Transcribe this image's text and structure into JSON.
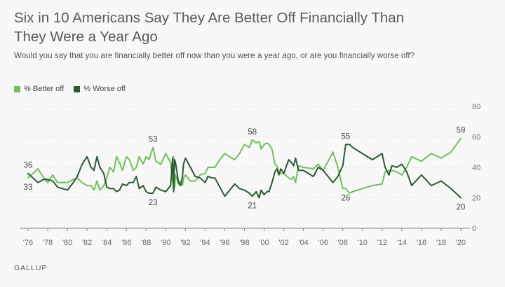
{
  "title": "Six in 10 Americans Say They Are Better Off Financially Than They Were a Year Ago",
  "subtitle": "Would you say that you are financially better off now than you were a year ago, or are you financially worse off?",
  "source": "GALLUP",
  "colors": {
    "better": "#72bf5f",
    "worse": "#2c5a33",
    "grid": "#dcdcdc",
    "axis": "#888888",
    "text": "#555555"
  },
  "chart_data": {
    "type": "line",
    "title": "Six in 10 Americans Say They Are Better Off Financially Than They Were a Year Ago",
    "xlabel": "",
    "ylabel": "",
    "xlim": [
      1976,
      2020
    ],
    "ylim": [
      0,
      80
    ],
    "y_ticks": [
      0,
      20,
      40,
      60,
      80
    ],
    "x_ticks": [
      1976,
      1978,
      1980,
      1982,
      1984,
      1986,
      1988,
      1990,
      1992,
      1994,
      1996,
      1998,
      2000,
      2002,
      2004,
      2006,
      2008,
      2010,
      2012,
      2014,
      2016,
      2018,
      2020
    ],
    "x_tick_labels": [
      "'76",
      "'78",
      "'80",
      "'82",
      "'84",
      "'86",
      "'88",
      "'90",
      "'92",
      "'94",
      "'96",
      "'98",
      "'00",
      "'02",
      "'04",
      "'06",
      "'08",
      "'10",
      "'12",
      "'14",
      "'16",
      "'18",
      "'20"
    ],
    "grid": true,
    "legend_position": "top-left",
    "series": [
      {
        "name": "% Better off",
        "color": "#72bf5f",
        "points": [
          [
            1976.0,
            33
          ],
          [
            1976.5,
            36
          ],
          [
            1977.0,
            39
          ],
          [
            1977.6,
            33
          ],
          [
            1978.0,
            30
          ],
          [
            1978.5,
            35
          ],
          [
            1979.0,
            30
          ],
          [
            1980.0,
            30
          ],
          [
            1980.6,
            32
          ],
          [
            1981.0,
            33
          ],
          [
            1981.5,
            30
          ],
          [
            1982.0,
            28
          ],
          [
            1982.4,
            28
          ],
          [
            1982.7,
            25
          ],
          [
            1983.0,
            31
          ],
          [
            1983.3,
            25
          ],
          [
            1983.7,
            28
          ],
          [
            1984.0,
            33
          ],
          [
            1984.3,
            40
          ],
          [
            1984.7,
            37
          ],
          [
            1985.0,
            47
          ],
          [
            1985.3,
            43
          ],
          [
            1985.6,
            38
          ],
          [
            1986.0,
            47
          ],
          [
            1986.3,
            45
          ],
          [
            1986.7,
            38
          ],
          [
            1987.0,
            40
          ],
          [
            1987.3,
            47
          ],
          [
            1987.7,
            42
          ],
          [
            1988.0,
            47
          ],
          [
            1988.3,
            45
          ],
          [
            1988.7,
            53
          ],
          [
            1989.0,
            44
          ],
          [
            1989.5,
            42
          ],
          [
            1990.0,
            49
          ],
          [
            1990.5,
            43
          ],
          [
            1990.7,
            30
          ],
          [
            1990.8,
            47
          ],
          [
            1990.9,
            26
          ],
          [
            1991.0,
            35
          ],
          [
            1991.3,
            29
          ],
          [
            1991.5,
            31
          ],
          [
            1991.7,
            28
          ],
          [
            1991.8,
            33
          ],
          [
            1992.0,
            35
          ],
          [
            1992.5,
            31
          ],
          [
            1993.0,
            31
          ],
          [
            1993.5,
            35
          ],
          [
            1994.0,
            36
          ],
          [
            1994.3,
            40
          ],
          [
            1994.7,
            40
          ],
          [
            1995.0,
            40
          ],
          [
            1995.5,
            45
          ],
          [
            1996.0,
            49
          ],
          [
            1997.0,
            45
          ],
          [
            1997.5,
            49
          ],
          [
            1998.0,
            55
          ],
          [
            1998.5,
            53
          ],
          [
            1998.8,
            58
          ],
          [
            1999.2,
            56
          ],
          [
            1999.5,
            57
          ],
          [
            1999.7,
            52
          ],
          [
            2000.0,
            55
          ],
          [
            2000.3,
            56
          ],
          [
            2000.5,
            55
          ],
          [
            2000.8,
            52
          ],
          [
            2001.1,
            42
          ],
          [
            2001.3,
            41
          ],
          [
            2001.5,
            37
          ],
          [
            2001.7,
            36
          ],
          [
            2002.0,
            36
          ],
          [
            2002.5,
            33
          ],
          [
            2002.8,
            32
          ],
          [
            2003.0,
            34
          ],
          [
            2003.2,
            30
          ],
          [
            2003.5,
            41
          ],
          [
            2004.0,
            40
          ],
          [
            2005.0,
            39
          ],
          [
            2005.5,
            42
          ],
          [
            2006.0,
            38
          ],
          [
            2007.0,
            50
          ],
          [
            2007.5,
            40
          ],
          [
            2008.0,
            26
          ],
          [
            2008.3,
            26
          ],
          [
            2008.7,
            23
          ],
          [
            2009.0,
            24
          ],
          [
            2010.0,
            26
          ],
          [
            2011.0,
            28
          ],
          [
            2012.0,
            29
          ],
          [
            2012.3,
            37
          ],
          [
            2012.7,
            38
          ],
          [
            2013.0,
            38
          ],
          [
            2013.5,
            37
          ],
          [
            2014.0,
            35
          ],
          [
            2014.5,
            40
          ],
          [
            2015.0,
            47
          ],
          [
            2016.0,
            44
          ],
          [
            2017.0,
            49
          ],
          [
            2018.0,
            46
          ],
          [
            2019.0,
            50
          ],
          [
            2020.0,
            59
          ]
        ]
      },
      {
        "name": "% Worse off",
        "color": "#2c5a33",
        "points": [
          [
            1976.0,
            36
          ],
          [
            1976.5,
            33
          ],
          [
            1977.0,
            30
          ],
          [
            1977.6,
            32
          ],
          [
            1978.0,
            32
          ],
          [
            1978.5,
            31
          ],
          [
            1979.0,
            27
          ],
          [
            1980.0,
            25
          ],
          [
            1980.6,
            30
          ],
          [
            1981.0,
            34
          ],
          [
            1981.5,
            42
          ],
          [
            1982.0,
            47
          ],
          [
            1982.4,
            40
          ],
          [
            1982.7,
            38
          ],
          [
            1983.0,
            47
          ],
          [
            1983.3,
            40
          ],
          [
            1983.7,
            36
          ],
          [
            1984.0,
            27
          ],
          [
            1984.3,
            26
          ],
          [
            1984.7,
            26
          ],
          [
            1985.0,
            24
          ],
          [
            1985.3,
            25
          ],
          [
            1985.6,
            29
          ],
          [
            1986.0,
            28
          ],
          [
            1986.3,
            30
          ],
          [
            1986.7,
            30
          ],
          [
            1987.0,
            34
          ],
          [
            1987.3,
            26
          ],
          [
            1987.7,
            28
          ],
          [
            1988.0,
            24
          ],
          [
            1988.3,
            23
          ],
          [
            1988.7,
            23
          ],
          [
            1989.0,
            27
          ],
          [
            1989.5,
            25
          ],
          [
            1990.0,
            24
          ],
          [
            1990.5,
            28
          ],
          [
            1990.7,
            46
          ],
          [
            1990.8,
            24
          ],
          [
            1990.9,
            45
          ],
          [
            1991.0,
            43
          ],
          [
            1991.3,
            30
          ],
          [
            1991.5,
            28
          ],
          [
            1991.7,
            34
          ],
          [
            1991.8,
            42
          ],
          [
            1992.0,
            46
          ],
          [
            1992.5,
            40
          ],
          [
            1993.0,
            34
          ],
          [
            1993.5,
            33
          ],
          [
            1994.0,
            30
          ],
          [
            1994.3,
            34
          ],
          [
            1994.7,
            33
          ],
          [
            1995.0,
            33
          ],
          [
            1995.5,
            27
          ],
          [
            1996.0,
            21
          ],
          [
            1997.0,
            29
          ],
          [
            1997.5,
            26
          ],
          [
            1998.0,
            25
          ],
          [
            1998.5,
            23
          ],
          [
            1998.8,
            21
          ],
          [
            1999.2,
            24
          ],
          [
            1999.5,
            20
          ],
          [
            1999.7,
            25
          ],
          [
            2000.0,
            22
          ],
          [
            2000.3,
            24
          ],
          [
            2000.5,
            24
          ],
          [
            2000.8,
            30
          ],
          [
            2001.1,
            37
          ],
          [
            2001.3,
            39
          ],
          [
            2001.5,
            35
          ],
          [
            2001.7,
            39
          ],
          [
            2002.0,
            36
          ],
          [
            2002.5,
            45
          ],
          [
            2002.8,
            43
          ],
          [
            2003.0,
            41
          ],
          [
            2003.2,
            46
          ],
          [
            2003.5,
            38
          ],
          [
            2004.0,
            38
          ],
          [
            2005.0,
            34
          ],
          [
            2005.5,
            40
          ],
          [
            2006.0,
            38
          ],
          [
            2007.0,
            30
          ],
          [
            2007.5,
            34
          ],
          [
            2008.0,
            41
          ],
          [
            2008.3,
            55
          ],
          [
            2008.7,
            55
          ],
          [
            2009.0,
            53
          ],
          [
            2010.0,
            49
          ],
          [
            2011.0,
            45
          ],
          [
            2012.0,
            49
          ],
          [
            2012.3,
            40
          ],
          [
            2012.7,
            35
          ],
          [
            2013.0,
            41
          ],
          [
            2013.5,
            40
          ],
          [
            2014.0,
            42
          ],
          [
            2014.5,
            37
          ],
          [
            2015.0,
            28
          ],
          [
            2016.0,
            35
          ],
          [
            2017.0,
            28
          ],
          [
            2018.0,
            31
          ],
          [
            2019.0,
            26
          ],
          [
            2020.0,
            20
          ]
        ]
      }
    ],
    "annotations": [
      {
        "text": "36",
        "x": 1976.0,
        "y": 36,
        "series": "% Worse off"
      },
      {
        "text": "33",
        "x": 1976.0,
        "y": 33,
        "series": "% Better off"
      },
      {
        "text": "53",
        "x": 1988.7,
        "y": 53,
        "series": "% Better off"
      },
      {
        "text": "23",
        "x": 1988.7,
        "y": 23,
        "series": "% Worse off"
      },
      {
        "text": "58",
        "x": 1998.8,
        "y": 58,
        "series": "% Better off"
      },
      {
        "text": "21",
        "x": 1998.8,
        "y": 21,
        "series": "% Worse off"
      },
      {
        "text": "55",
        "x": 2008.3,
        "y": 55,
        "series": "% Worse off"
      },
      {
        "text": "26",
        "x": 2008.3,
        "y": 26,
        "series": "% Better off"
      },
      {
        "text": "59",
        "x": 2020.0,
        "y": 59,
        "series": "% Better off"
      },
      {
        "text": "20",
        "x": 2020.0,
        "y": 20,
        "series": "% Worse off"
      }
    ]
  }
}
